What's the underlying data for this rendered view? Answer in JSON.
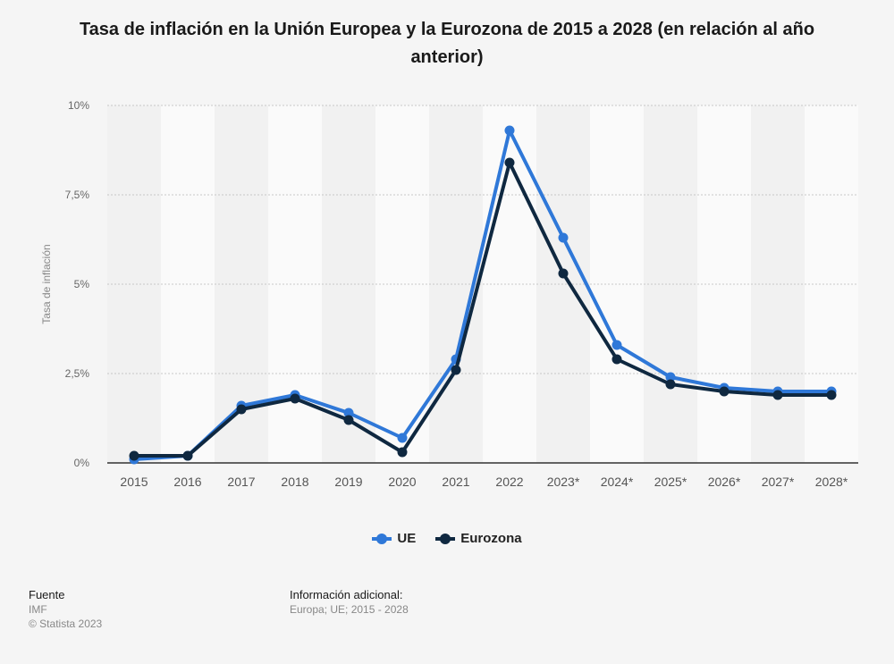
{
  "title": "Tasa de inflación en la Unión Europea y la Eurozona de 2015 a 2028 (en relación al año anterior)",
  "chart_data": {
    "type": "line",
    "title": "Tasa de inflación en la Unión Europea y la Eurozona de 2015 a 2028 (en relación al año anterior)",
    "xlabel": "",
    "ylabel": "Tasa de inflación",
    "categories": [
      "2015",
      "2016",
      "2017",
      "2018",
      "2019",
      "2020",
      "2021",
      "2022",
      "2023*",
      "2024*",
      "2025*",
      "2026*",
      "2027*",
      "2028*"
    ],
    "y_ticks": [
      {
        "value": 0,
        "label": "0%"
      },
      {
        "value": 2.5,
        "label": "2,5%"
      },
      {
        "value": 5,
        "label": "5%"
      },
      {
        "value": 7.5,
        "label": "7,5%"
      },
      {
        "value": 10,
        "label": "10%"
      }
    ],
    "ylim": [
      0,
      10
    ],
    "grid": true,
    "legend_position": "bottom-center",
    "series": [
      {
        "name": "UE",
        "color": "#2f78d8",
        "values": [
          0.1,
          0.2,
          1.6,
          1.9,
          1.4,
          0.7,
          2.9,
          9.3,
          6.3,
          3.3,
          2.4,
          2.1,
          2.0,
          2.0
        ]
      },
      {
        "name": "Eurozona",
        "color": "#0f2840",
        "values": [
          0.2,
          0.2,
          1.5,
          1.8,
          1.2,
          0.3,
          2.6,
          8.4,
          5.3,
          2.9,
          2.2,
          2.0,
          1.9,
          1.9
        ]
      }
    ]
  },
  "footer": {
    "source_label": "Fuente",
    "source_value": "IMF",
    "copyright": "© Statista 2023",
    "info_label": "Información adicional:",
    "info_value": "Europa; UE; 2015 - 2028"
  }
}
